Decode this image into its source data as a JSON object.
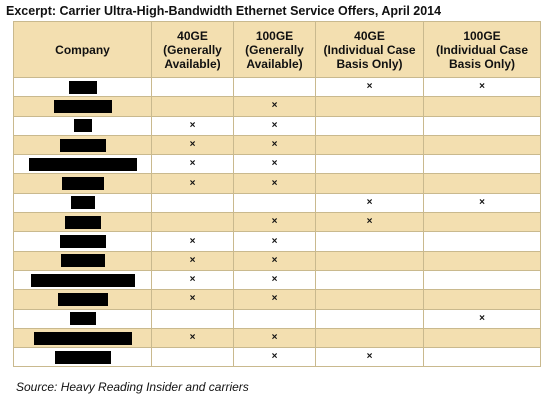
{
  "title": "Excerpt: Carrier Ultra-High-Bandwidth Ethernet Service Offers, April 2014",
  "columns": [
    "Company",
    "40GE\n(Generally\nAvailable)",
    "100GE\n(Generally\nAvailable)",
    "40GE\n(Individual Case\nBasis Only)",
    "100GE\n(Individual Case\nBasis Only)"
  ],
  "mark_symbol": "×",
  "rows": [
    {
      "company": "",
      "redacted": true,
      "marks": [
        false,
        false,
        true,
        true
      ]
    },
    {
      "company": "",
      "redacted": true,
      "marks": [
        false,
        true,
        false,
        false
      ]
    },
    {
      "company": "",
      "redacted": true,
      "marks": [
        true,
        true,
        false,
        false
      ]
    },
    {
      "company": "",
      "redacted": true,
      "marks": [
        true,
        true,
        false,
        false
      ]
    },
    {
      "company": "",
      "redacted": true,
      "marks": [
        true,
        true,
        false,
        false
      ]
    },
    {
      "company": "",
      "redacted": true,
      "marks": [
        true,
        true,
        false,
        false
      ]
    },
    {
      "company": "",
      "redacted": true,
      "marks": [
        false,
        false,
        true,
        true
      ]
    },
    {
      "company": "",
      "redacted": true,
      "marks": [
        false,
        true,
        true,
        false
      ]
    },
    {
      "company": "",
      "redacted": true,
      "marks": [
        true,
        true,
        false,
        false
      ]
    },
    {
      "company": "",
      "redacted": true,
      "marks": [
        true,
        true,
        false,
        false
      ]
    },
    {
      "company": "",
      "redacted": true,
      "marks": [
        true,
        true,
        false,
        false
      ]
    },
    {
      "company": "",
      "redacted": true,
      "marks": [
        true,
        true,
        false,
        false
      ]
    },
    {
      "company": "",
      "redacted": true,
      "marks": [
        false,
        false,
        false,
        true
      ]
    },
    {
      "company": "",
      "redacted": true,
      "marks": [
        true,
        true,
        false,
        false
      ]
    },
    {
      "company": "",
      "redacted": true,
      "marks": [
        false,
        true,
        true,
        false
      ]
    }
  ],
  "source": "Source: Heavy Reading Insider and carriers"
}
